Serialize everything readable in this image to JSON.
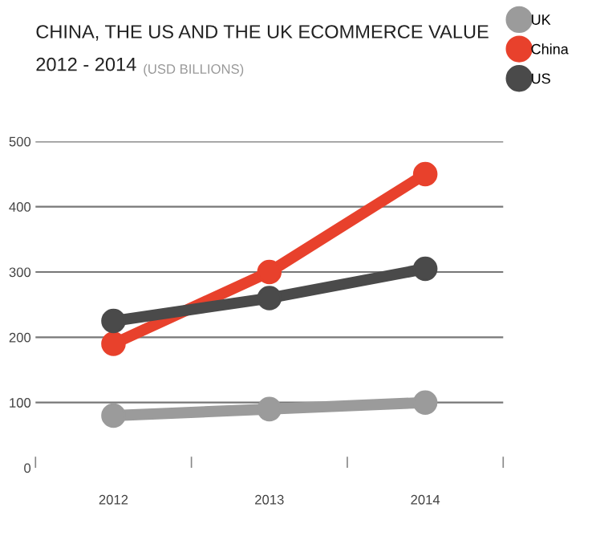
{
  "chart_data": {
    "type": "line",
    "title": "CHINA, THE US AND THE UK ECOMMERCE VALUE\n2012 - 2014",
    "subtitle": "(USD BILLIONS)",
    "categories": [
      "2012",
      "2013",
      "2014"
    ],
    "series": [
      {
        "name": "UK",
        "color": "#9b9b9b",
        "values": [
          80,
          90,
          100
        ]
      },
      {
        "name": "China",
        "color": "#e8412c",
        "values": [
          190,
          300,
          450
        ]
      },
      {
        "name": "US",
        "color": "#4a4a4a",
        "values": [
          225,
          260,
          305
        ]
      }
    ],
    "ylim": [
      0,
      500
    ],
    "yticks": [
      0,
      100,
      200,
      300,
      400,
      500
    ],
    "grid": "y",
    "legend": "top right",
    "marker": "circle",
    "line_style": "solid"
  }
}
